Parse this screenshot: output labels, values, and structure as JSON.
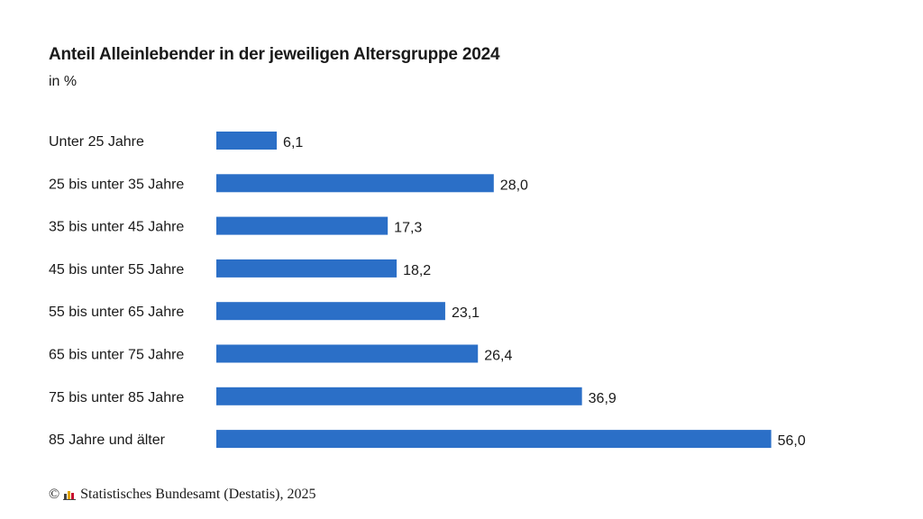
{
  "chart_data": {
    "type": "bar",
    "orientation": "horizontal",
    "title": "Anteil Alleinlebender in der jeweiligen Altersgruppe 2024",
    "subtitle": "in %",
    "categories": [
      "Unter 25 Jahre",
      "25 bis unter 35 Jahre",
      "35 bis unter 45 Jahre",
      "45 bis unter 55 Jahre",
      "55 bis unter 65 Jahre",
      "65 bis unter 75 Jahre",
      "75 bis unter 85 Jahre",
      "85 Jahre und älter"
    ],
    "values": [
      6.1,
      28.0,
      17.3,
      18.2,
      23.1,
      26.4,
      36.9,
      56.0
    ],
    "value_labels": [
      "6,1",
      "28,0",
      "17,3",
      "18,2",
      "23,1",
      "26,4",
      "36,9",
      "56,0"
    ],
    "bar_color": "#2b6fc7",
    "grid": false,
    "legend": "none"
  },
  "footer": {
    "copyright_symbol": "©",
    "logo_icon": "destatis-logo-icon",
    "source": "Statistisches Bundesamt (Destatis), 2025",
    "logo_colors": [
      "#444444",
      "#e1a500",
      "#c8102e"
    ]
  }
}
